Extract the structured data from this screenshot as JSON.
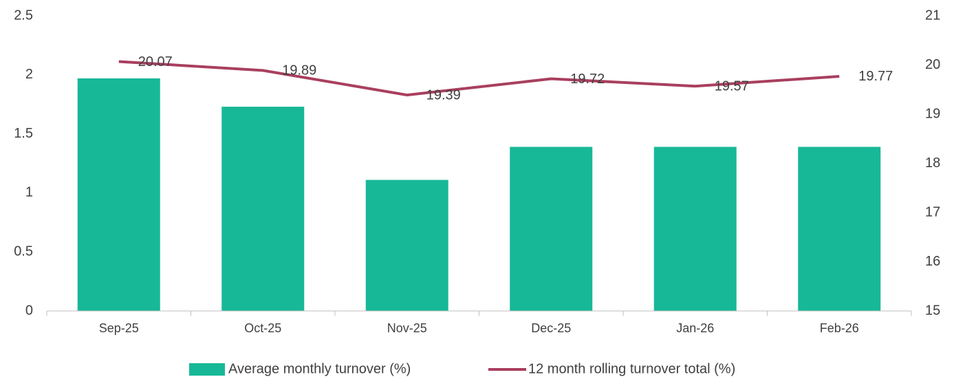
{
  "chart_data": {
    "type": "combo",
    "categories": [
      "Sep-25",
      "Oct-25",
      "Nov-25",
      "Dec-25",
      "Jan-26",
      "Feb-26"
    ],
    "series": [
      {
        "name": "Average monthly turnover (%)",
        "type": "bar",
        "color": "#17b897",
        "values": [
          1.97,
          1.73,
          1.11,
          1.39,
          1.39,
          1.39
        ]
      },
      {
        "name": "12 month rolling turnover total (%)",
        "type": "line",
        "axis": "y2",
        "color": "#a93f5f",
        "values": [
          20.07,
          19.89,
          19.39,
          19.72,
          19.57,
          19.77
        ]
      }
    ],
    "ylim": [
      0,
      2.5
    ],
    "yticks": [
      0,
      0.5,
      1,
      1.5,
      2,
      2.5
    ],
    "y2lim": [
      15,
      21
    ],
    "y2ticks": [
      15,
      16,
      17,
      18,
      19,
      20,
      21
    ],
    "grid": false,
    "legend": "bottom"
  }
}
